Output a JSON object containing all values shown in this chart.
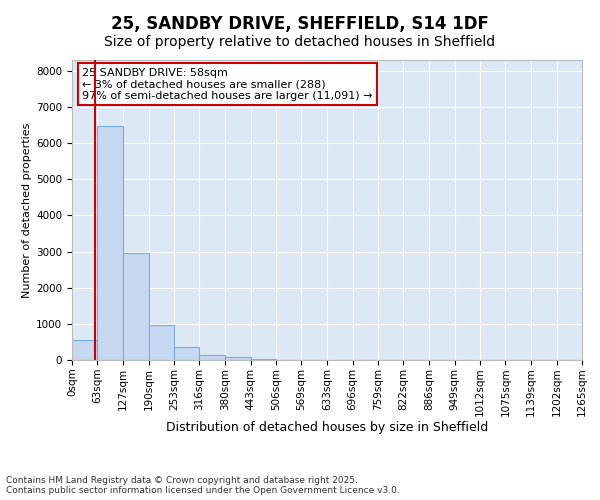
{
  "title_line1": "25, SANDBY DRIVE, SHEFFIELD, S14 1DF",
  "title_line2": "Size of property relative to detached houses in Sheffield",
  "xlabel": "Distribution of detached houses by size in Sheffield",
  "ylabel": "Number of detached properties",
  "bin_edges": [
    0,
    63,
    127,
    190,
    253,
    316,
    380,
    443,
    506,
    569,
    633,
    696,
    759,
    822,
    886,
    949,
    1012,
    1075,
    1139,
    1202,
    1265
  ],
  "bar_heights": [
    550,
    6480,
    2970,
    970,
    370,
    150,
    80,
    30,
    5,
    2,
    1,
    0,
    0,
    0,
    0,
    0,
    0,
    0,
    0,
    0
  ],
  "bar_color": "#c5d8f0",
  "bar_edgecolor": "#7badd4",
  "bar_linewidth": 0.8,
  "property_size": 58,
  "vline_color": "#cc0000",
  "vline_linewidth": 1.5,
  "annotation_text": "25 SANDBY DRIVE: 58sqm\n← 3% of detached houses are smaller (288)\n97% of semi-detached houses are larger (11,091) →",
  "annotation_box_color": "#cc0000",
  "annotation_text_fontsize": 8,
  "ylim": [
    0,
    8300
  ],
  "yticks": [
    0,
    1000,
    2000,
    3000,
    4000,
    5000,
    6000,
    7000,
    8000
  ],
  "fig_background_color": "#ffffff",
  "plot_background_color": "#dde8f5",
  "grid_color": "#ffffff",
  "footer_text": "Contains HM Land Registry data © Crown copyright and database right 2025.\nContains public sector information licensed under the Open Government Licence v3.0.",
  "title_fontsize": 12,
  "subtitle_fontsize": 10,
  "xlabel_fontsize": 9,
  "ylabel_fontsize": 8,
  "tick_fontsize": 7.5,
  "footer_fontsize": 6.5
}
